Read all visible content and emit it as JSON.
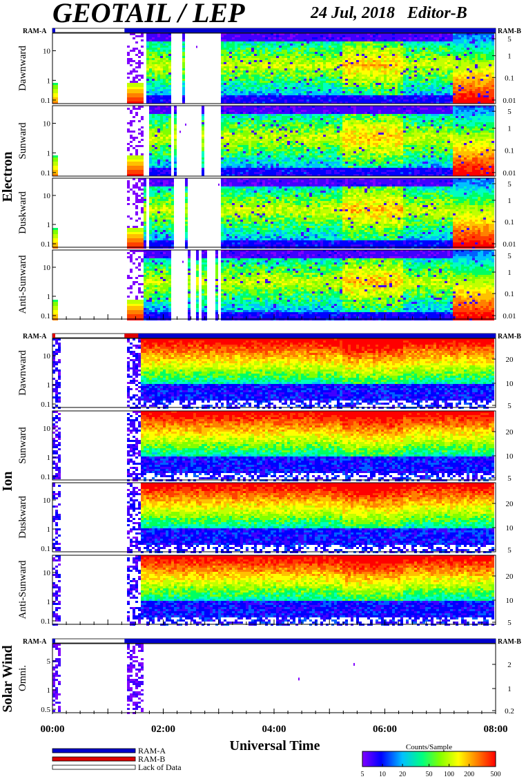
{
  "header": {
    "title": "GEOTAIL / LEP",
    "subtitle": "24 Jul, 2018   Editor-B"
  },
  "chart_data": {
    "type": "heatmap",
    "xlabel": "Universal Time",
    "x_ticks": [
      "00:00",
      "02:00",
      "04:00",
      "06:00",
      "08:00"
    ],
    "x_range_hours": [
      0,
      8
    ],
    "groups": [
      {
        "name": "Electron",
        "ram_labels": {
          "left": "RAM-A",
          "right": "RAM-B"
        },
        "panels": [
          {
            "label": "Dawnward",
            "left_ticks": [
              "10",
              "1",
              "0.1"
            ],
            "right_ticks": [
              "5",
              "1",
              "0.1",
              "0.01"
            ]
          },
          {
            "label": "Sunward",
            "left_ticks": [
              "10",
              "1",
              "0.1"
            ],
            "right_ticks": [
              "5",
              "1",
              "0.1",
              "0.01"
            ]
          },
          {
            "label": "Duskward",
            "left_ticks": [
              "10",
              "1",
              "0.1"
            ],
            "right_ticks": [
              "5",
              "1",
              "0.1",
              "0.01"
            ]
          },
          {
            "label": "Anti-Sunward",
            "left_ticks": [
              "10",
              "1",
              "0.1"
            ],
            "right_ticks": [
              "5",
              "1",
              "0.1",
              "0.01"
            ]
          }
        ]
      },
      {
        "name": "Ion",
        "ram_labels": {
          "left": "RAM-A",
          "right": "RAM-B"
        },
        "panels": [
          {
            "label": "Dawnward",
            "left_ticks": [
              "10",
              "1",
              "0.1"
            ],
            "right_ticks": [
              "20",
              "10",
              "5"
            ]
          },
          {
            "label": "Sunward",
            "left_ticks": [
              "10",
              "1",
              "0.1"
            ],
            "right_ticks": [
              "20",
              "10",
              "5"
            ]
          },
          {
            "label": "Duskward",
            "left_ticks": [
              "10",
              "1",
              "0.1"
            ],
            "right_ticks": [
              "20",
              "10",
              "5"
            ]
          },
          {
            "label": "Anti-Sunward",
            "left_ticks": [
              "10",
              "1",
              "0.1"
            ],
            "right_ticks": [
              "20",
              "10",
              "5"
            ]
          }
        ]
      },
      {
        "name": "Solar Wind",
        "ram_labels": {
          "left": "RAM-A",
          "right": "RAM-B"
        },
        "panels": [
          {
            "label": "Omni.",
            "left_ticks": [
              "5",
              "1",
              "0.5"
            ],
            "right_ticks": [
              "2",
              "1",
              "0.2"
            ]
          }
        ]
      }
    ],
    "legend": {
      "items": [
        {
          "label": "RAM-A",
          "color": "#0000cc"
        },
        {
          "label": "RAM-B",
          "color": "#dd0000"
        },
        {
          "label": "Lack of Data",
          "color": "#ffffff"
        }
      ]
    },
    "colorbar": {
      "title": "Counts/Sample",
      "ticks": [
        "5",
        "10",
        "20",
        "50",
        "100",
        "200",
        "500"
      ],
      "colors": [
        "#8000ff",
        "#0000ff",
        "#00c0ff",
        "#00ff80",
        "#80ff00",
        "#ffff00",
        "#ff8000",
        "#ff0000"
      ]
    }
  }
}
